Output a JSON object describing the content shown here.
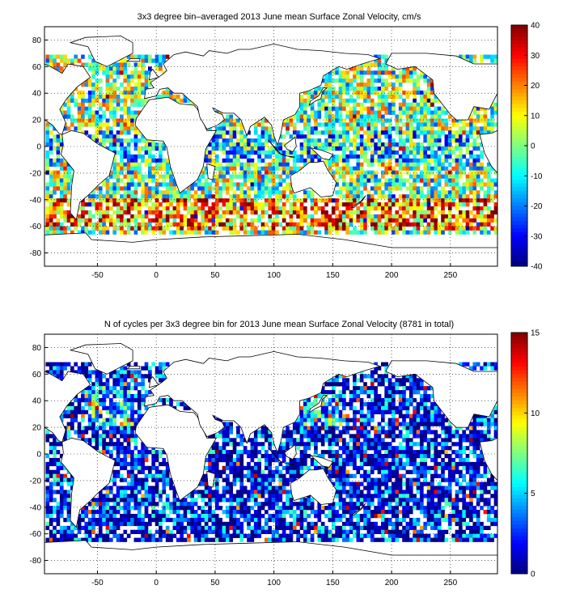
{
  "panels": [
    {
      "title": "3x3 degree bin–averaged 2013 June mean Surface Zonal Velocity, cm/s",
      "x_ticks": [
        "-50",
        "0",
        "50",
        "100",
        "150",
        "200",
        "250"
      ],
      "y_ticks": [
        "80",
        "60",
        "40",
        "20",
        "0",
        "-20",
        "-40",
        "-60",
        "-80"
      ],
      "colorbar": {
        "ticks": [
          "40",
          "30",
          "20",
          "10",
          "0",
          "-10",
          "-20",
          "-30",
          "-40"
        ],
        "range": [
          -40,
          40
        ]
      }
    },
    {
      "title": "N of cycles per 3x3 degree bin for 2013 June mean Surface Zonal Velocity (8781 in total)",
      "x_ticks": [
        "-50",
        "0",
        "50",
        "100",
        "150",
        "200",
        "250"
      ],
      "y_ticks": [
        "80",
        "60",
        "40",
        "20",
        "0",
        "-20",
        "-40",
        "-60",
        "-80"
      ],
      "colorbar": {
        "ticks": [
          "15",
          "10",
          "5",
          "0"
        ],
        "range": [
          0,
          15
        ]
      }
    }
  ],
  "map": {
    "lon_range": [
      -95,
      290
    ],
    "lat_range": [
      -90,
      90
    ],
    "grid": "dotted",
    "colormap": "jet"
  }
}
